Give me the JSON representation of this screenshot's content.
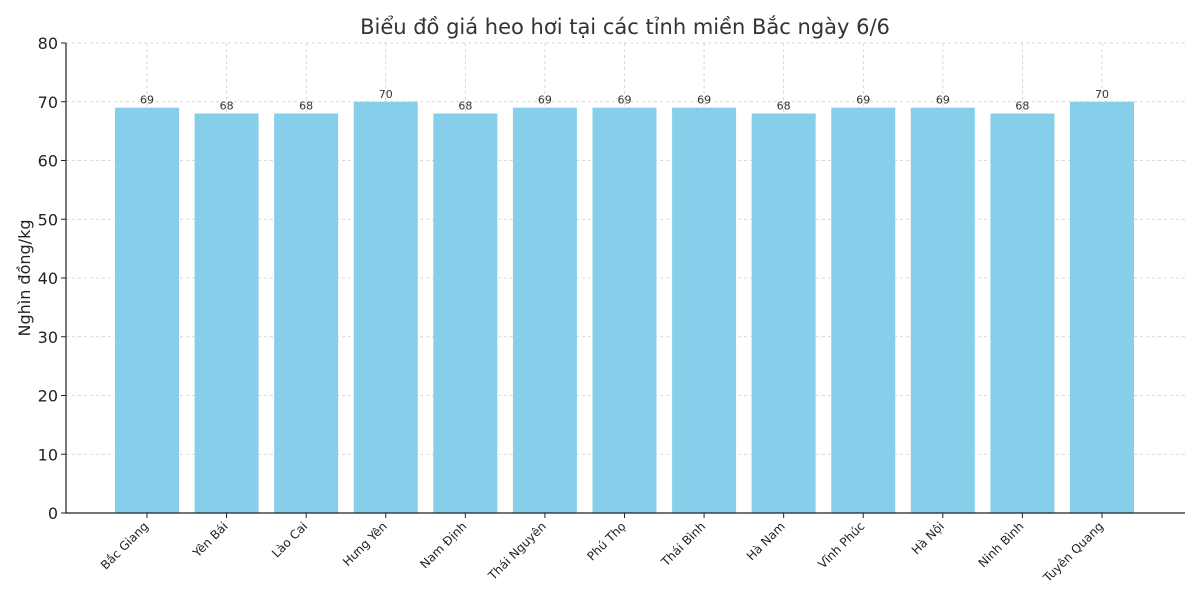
{
  "chart_data": {
    "type": "bar",
    "title": "Biểu đồ giá heo hơi tại các tỉnh miền Bắc ngày 6/6",
    "xlabel": "",
    "ylabel": "Nghìn đồng/kg",
    "ylim": [
      0,
      80
    ],
    "yticks": [
      0,
      10,
      20,
      30,
      40,
      50,
      60,
      70,
      80
    ],
    "grid": true,
    "bar_color": "#87CEEB",
    "categories": [
      "Bắc Giang",
      "Yên Bái",
      "Lào Cai",
      "Hưng Yên",
      "Nam Định",
      "Thái Nguyên",
      "Phú Thọ",
      "Thái Bình",
      "Hà Nam",
      "Vĩnh Phúc",
      "Hà Nội",
      "Ninh Bình",
      "Tuyên Quang"
    ],
    "values": [
      69,
      68,
      68,
      70,
      68,
      69,
      69,
      69,
      68,
      69,
      69,
      68,
      70
    ],
    "data_labels": [
      "69",
      "68",
      "68",
      "70",
      "68",
      "69",
      "69",
      "69",
      "68",
      "69",
      "69",
      "68",
      "70"
    ]
  }
}
